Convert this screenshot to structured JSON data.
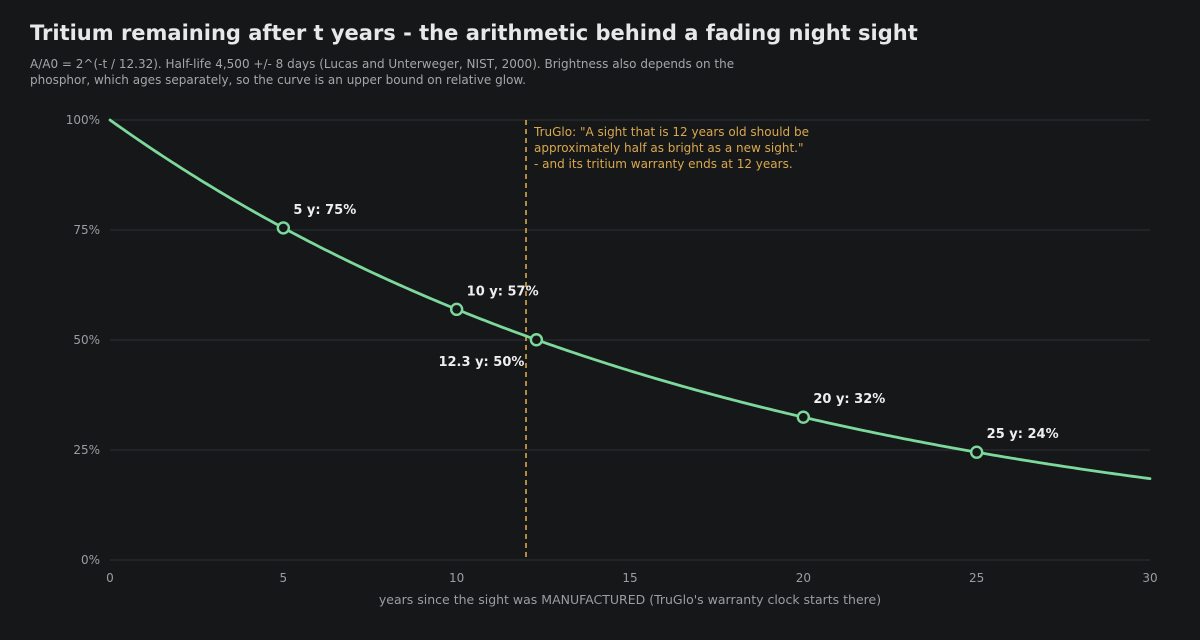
{
  "header": {
    "title": "Tritium remaining after t years - the arithmetic behind a fading night sight",
    "subtitle": "A/A0 = 2^(-t / 12.32). Half-life 4,500 +/- 8 days (Lucas and Unterweger, NIST, 2000). Brightness also depends on the phosphor, which ages separately, so the curve is an upper bound on relative glow."
  },
  "chart_data": {
    "type": "line",
    "title": "Tritium remaining after t years - the arithmetic behind a fading night sight",
    "subtitle": "A/A0 = 2^(-t / 12.32). Half-life 4,500 +/- 8 days (Lucas and Unterweger, NIST, 2000). Brightness also depends on the phosphor, which ages separately, so the curve is an upper bound on relative glow.",
    "xlabel": "years since the sight was MANUFACTURED (TruGlo's warranty clock starts there)",
    "ylabel": "",
    "xlim": [
      0,
      30
    ],
    "ylim": [
      0,
      100
    ],
    "x_ticks": [
      0,
      5,
      10,
      15,
      20,
      25,
      30
    ],
    "x_tick_labels": [
      "0",
      "5",
      "10",
      "15",
      "20",
      "25",
      "30"
    ],
    "y_ticks": [
      0,
      25,
      50,
      75,
      100
    ],
    "y_tick_labels": [
      "0%",
      "25%",
      "50%",
      "75%",
      "100%"
    ],
    "grid": "horizontal",
    "half_life_years": 12.32,
    "series": [
      {
        "color": "#7dd89b",
        "x": [
          0,
          2,
          4,
          6,
          8,
          10,
          12,
          14,
          16,
          18,
          20,
          22,
          24,
          26,
          28,
          30
        ],
        "y": [
          100,
          89.4,
          79.8,
          71.4,
          63.8,
          57.0,
          50.9,
          45.5,
          40.6,
          36.3,
          32.5,
          29.0,
          25.9,
          23.2,
          20.7,
          18.5
        ]
      }
    ],
    "markers": [
      {
        "x": 5,
        "y": 75,
        "label": "5 y: 75%"
      },
      {
        "x": 10,
        "y": 57,
        "label": "10 y: 57%"
      },
      {
        "x": 12.3,
        "y": 50,
        "label": "12.3 y: 50%"
      },
      {
        "x": 20,
        "y": 32,
        "label": "20 y: 32%"
      },
      {
        "x": 25,
        "y": 24,
        "label": "25 y: 24%"
      }
    ],
    "vline": {
      "x": 12,
      "color": "#d9a84e",
      "annotation": [
        "TruGlo: \"A sight that is 12 years old should be",
        "approximately half as bright as a new sight.\"",
        "- and its tritium warranty ends at 12 years."
      ]
    },
    "colors": {
      "background": "#161719",
      "grid": "#2b2d31",
      "line": "#7dd89b",
      "annotation": "#d9a84e"
    }
  }
}
